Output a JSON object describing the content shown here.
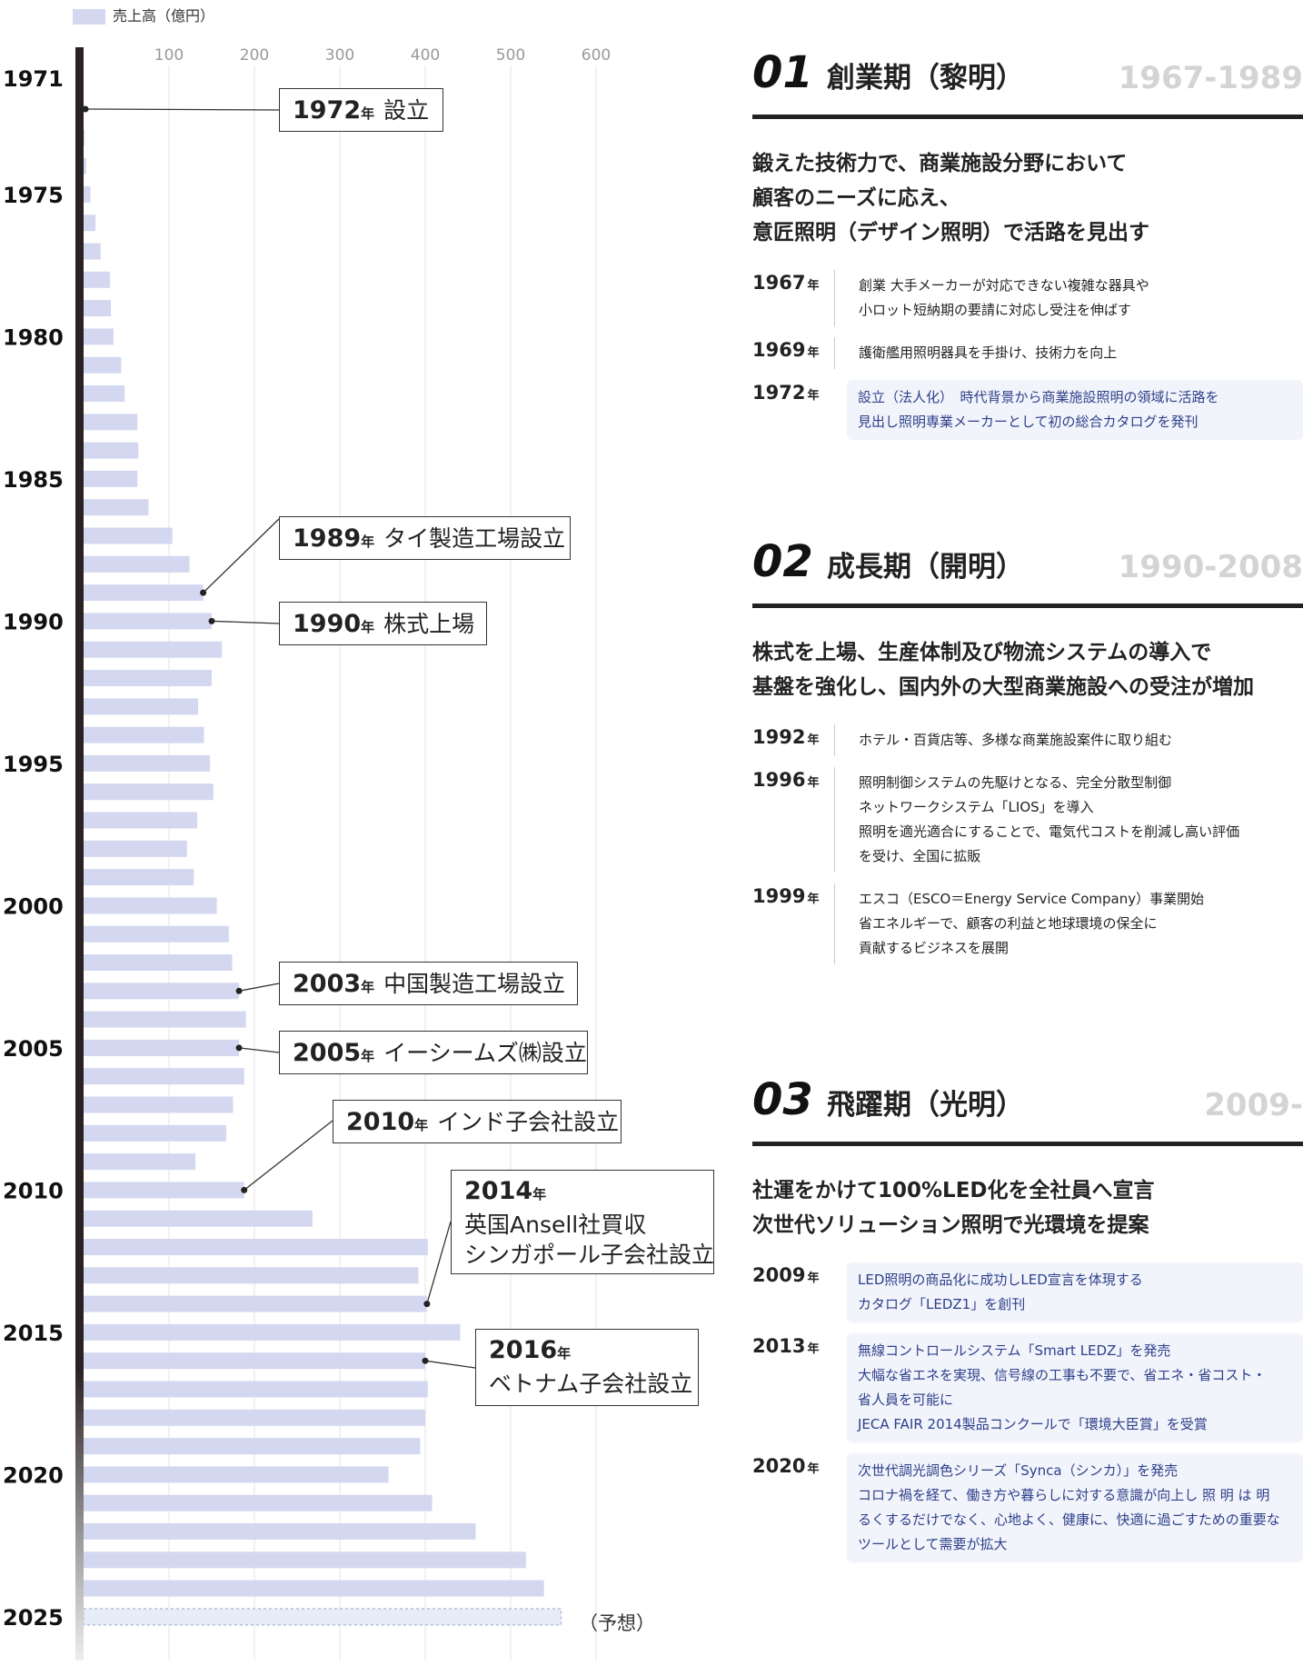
{
  "legend": {
    "label": "売上高（億円）",
    "color": "#d3d8f0"
  },
  "forecast_label": "（予想）",
  "chart_data": {
    "type": "bar",
    "orientation": "horizontal",
    "title": "",
    "xlabel": "売上高（億円）",
    "ylabel": "",
    "xlim": [
      0,
      600
    ],
    "x_ticks": [
      100,
      200,
      300,
      400,
      500,
      600
    ],
    "year_labels": [
      "1971",
      "1975",
      "1980",
      "1985",
      "1990",
      "1995",
      "2000",
      "2005",
      "2010",
      "2015",
      "2020",
      "2025"
    ],
    "grid": true,
    "bar_color": "#d3d8f0",
    "forecast_color": "#e6ecf8",
    "years": [
      1972,
      1973,
      1974,
      1975,
      1976,
      1977,
      1978,
      1979,
      1980,
      1981,
      1982,
      1983,
      1984,
      1985,
      1986,
      1987,
      1988,
      1989,
      1990,
      1991,
      1992,
      1993,
      1994,
      1995,
      1996,
      1997,
      1998,
      1999,
      2000,
      2001,
      2002,
      2003,
      2004,
      2005,
      2006,
      2007,
      2008,
      2009,
      2010,
      2011,
      2012,
      2013,
      2014,
      2015,
      2016,
      2017,
      2018,
      2019,
      2020,
      2021,
      2022,
      2023,
      2024,
      2025
    ],
    "values": [
      0,
      1,
      3,
      8,
      14,
      20,
      31,
      32,
      35,
      44,
      48,
      63,
      64,
      63,
      76,
      104,
      124,
      140,
      150,
      162,
      150,
      134,
      141,
      148,
      152,
      133,
      121,
      129,
      156,
      170,
      174,
      182,
      190,
      182,
      188,
      175,
      167,
      131,
      188,
      268,
      403,
      392,
      402,
      441,
      400,
      403,
      400,
      394,
      357,
      408,
      459,
      518,
      539,
      559
    ],
    "forecast_years": [
      2025
    ]
  },
  "callouts": [
    {
      "year": "1972",
      "nen": "年",
      "text": "設立",
      "point_year": 1972
    },
    {
      "year": "1989",
      "nen": "年",
      "text": "タイ製造工場設立",
      "point_year": 1989
    },
    {
      "year": "1990",
      "nen": "年",
      "text": "株式上場",
      "point_year": 1990
    },
    {
      "year": "2003",
      "nen": "年",
      "text": "中国製造工場設立",
      "point_year": 2003
    },
    {
      "year": "2005",
      "nen": "年",
      "text": "イーシームズ㈱設立",
      "point_year": 2005
    },
    {
      "year": "2010",
      "nen": "年",
      "text": "インド子会社設立",
      "point_year": 2010
    },
    {
      "year": "2014",
      "nen": "年",
      "line1": "英国Ansell社買収",
      "line2": "シンガポール子会社設立",
      "point_year": 2014
    },
    {
      "year": "2016",
      "nen": "年",
      "line1": "ベトナム子会社設立",
      "point_year": 2016
    }
  ],
  "eras": [
    {
      "num": "01",
      "title": "創業期（黎明）",
      "range": "1967-1989",
      "lead": [
        "鍛えた技術力で、商業施設分野において",
        "顧客のニーズに応え、",
        "意匠照明（デザイン照明）で活路を見出す"
      ],
      "events": [
        {
          "year": "1967",
          "nen": "年",
          "lines": [
            "創業 大手メーカーが対応できない複雑な器具や",
            "小ロット短納期の要請に対応し受注を伸ばす"
          ],
          "highlight": false
        },
        {
          "year": "1969",
          "nen": "年",
          "lines": [
            "護衛艦用照明器具を手掛け、技術力を向上"
          ],
          "highlight": false
        },
        {
          "year": "1972",
          "nen": "年",
          "lines": [
            "設立（法人化）　時代背景から商業施設照明の領域に活路を",
            "見出し照明専業メーカーとして初の総合カタログを発刊"
          ],
          "highlight": true
        }
      ]
    },
    {
      "num": "02",
      "title": "成長期（開明）",
      "range": "1990-2008",
      "lead": [
        "株式を上場、生産体制及び物流システムの導入で",
        "基盤を強化し、国内外の大型商業施設への受注が増加"
      ],
      "events": [
        {
          "year": "1992",
          "nen": "年",
          "lines": [
            "ホテル・百貨店等、多様な商業施設案件に取り組む"
          ],
          "highlight": false
        },
        {
          "year": "1996",
          "nen": "年",
          "lines": [
            "照明制御システムの先駆けとなる、完全分散型制御",
            "ネットワークシステム「LIOS」を導入",
            "照明を適光適合にすることで、電気代コストを削減し高い評価",
            "を受け、全国に拡販"
          ],
          "highlight": false
        },
        {
          "year": "1999",
          "nen": "年",
          "lines": [
            "エスコ（ESCO＝Energy Service Company）事業開始",
            "省エネルギーで、顧客の利益と地球環境の保全に",
            "貢献するビジネスを展開"
          ],
          "highlight": false
        }
      ]
    },
    {
      "num": "03",
      "title": "飛躍期（光明）",
      "range": "2009-",
      "lead": [
        "社運をかけて100%LED化を全社員へ宣言",
        "次世代ソリューション照明で光環境を提案"
      ],
      "events": [
        {
          "year": "2009",
          "nen": "年",
          "lines": [
            "LED照明の商品化に成功しLED宣言を体現する",
            "カタログ「LEDZ1」を創刊"
          ],
          "highlight": true
        },
        {
          "year": "2013",
          "nen": "年",
          "lines": [
            "無線コントロールシステム「Smart LEDZ」を発売",
            "大幅な省エネを実現、信号線の工事も不要で、省エネ・省コスト・",
            "省人員を可能に",
            "JECA FAIR 2014製品コンクールで「環境大臣賞」を受賞"
          ],
          "highlight": true
        },
        {
          "year": "2020",
          "nen": "年",
          "lines": [
            "次世代調光調色シリーズ「Synca（シンカ）」を発売",
            "コロナ禍を経て、働き方や暮らしに対する意識が向上し 照 明 は 明",
            "るくするだけでなく、心地よく、健康に、快適に過ごすための重要な",
            "ツールとして需要が拡大"
          ],
          "highlight": true
        }
      ]
    }
  ]
}
